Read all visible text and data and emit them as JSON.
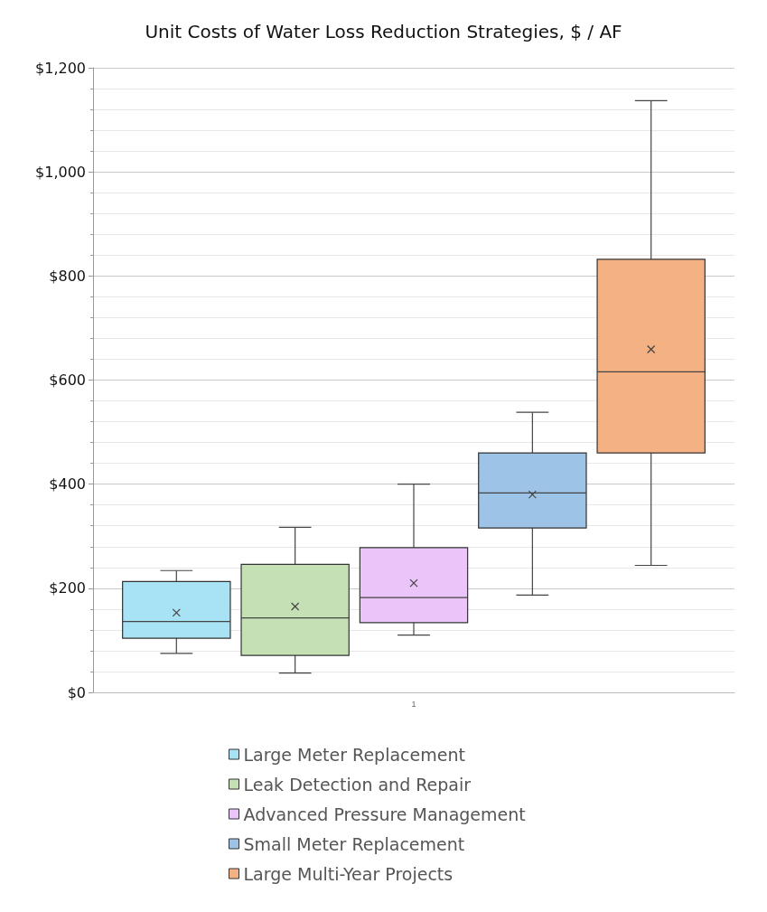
{
  "chart_data": {
    "type": "box",
    "title": "Unit Costs of Water Loss Reduction Strategies, $ / AF",
    "categories": [
      "1"
    ],
    "ylim": [
      0,
      1200
    ],
    "yticks": [
      {
        "value": 0,
        "label": "$0"
      },
      {
        "value": 200,
        "label": "$200"
      },
      {
        "value": 400,
        "label": "$400"
      },
      {
        "value": 600,
        "label": "$600"
      },
      {
        "value": 800,
        "label": "$800"
      },
      {
        "value": 1000,
        "label": "$1,000"
      },
      {
        "value": 1200,
        "label": "$1,200"
      }
    ],
    "grid": "y",
    "legend": "bottom",
    "series": [
      {
        "name": "Large Meter Replacement",
        "color": "#a8e3f5",
        "boxes": [
          {
            "low": 75,
            "q1": 104,
            "median": 136,
            "q3": 213,
            "high": 234,
            "mean": 153
          }
        ]
      },
      {
        "name": "Leak Detection and Repair",
        "color": "#c5e0b4",
        "boxes": [
          {
            "low": 37,
            "q1": 71,
            "median": 143,
            "q3": 246,
            "high": 317,
            "mean": 165
          }
        ]
      },
      {
        "name": "Advanced Pressure Management",
        "color": "#ebc5f9",
        "boxes": [
          {
            "low": 110,
            "q1": 134,
            "median": 182,
            "q3": 278,
            "high": 400,
            "mean": 210
          }
        ]
      },
      {
        "name": "Small Meter Replacement",
        "color": "#9dc3e6",
        "boxes": [
          {
            "low": 187,
            "q1": 316,
            "median": 383,
            "q3": 460,
            "high": 538,
            "mean": 380
          }
        ]
      },
      {
        "name": "Large Multi-Year Projects",
        "color": "#f4b183",
        "boxes": [
          {
            "low": 244,
            "q1": 460,
            "median": 616,
            "q3": 832,
            "high": 1137,
            "mean": 659
          }
        ]
      }
    ]
  }
}
